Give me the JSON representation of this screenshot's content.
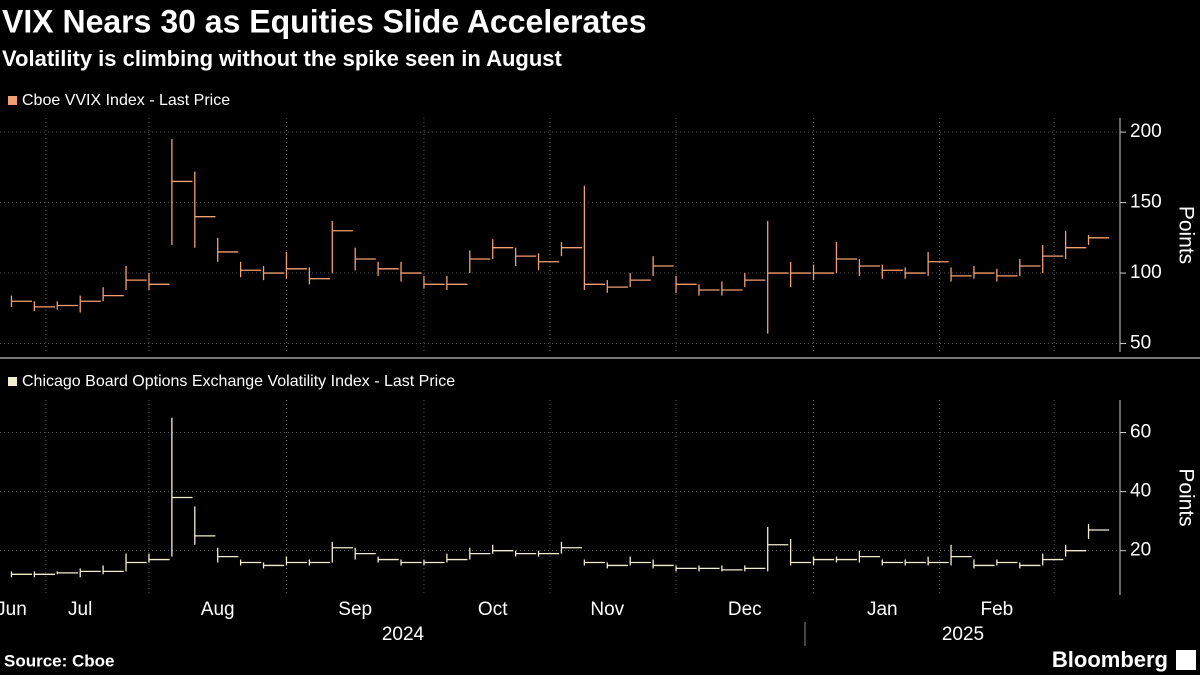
{
  "title": "VIX Nears 30 as Equities Slide Accelerates",
  "subtitle": "Volatility is climbing without the spike seen in August",
  "source": "Source: Cboe",
  "brand": "Bloomberg",
  "x_axis": {
    "categories": [
      "Jun",
      null,
      null,
      "Jul",
      null,
      null,
      null,
      null,
      null,
      "Aug",
      null,
      null,
      null,
      null,
      null,
      "Sep",
      null,
      null,
      null,
      null,
      null,
      "Oct",
      null,
      null,
      null,
      null,
      "Nov",
      null,
      null,
      null,
      null,
      null,
      "Dec",
      null,
      null,
      null,
      null,
      null,
      "Jan",
      null,
      null,
      null,
      null,
      "Feb",
      null,
      null,
      null,
      null
    ],
    "years": [
      "2024",
      "2025"
    ]
  },
  "chart_data": [
    {
      "type": "hlc",
      "legend": "Cboe VVIX Index - Last Price",
      "color": "#f2a071",
      "ylabel": "Points",
      "ylim": [
        44,
        210
      ],
      "yticks": [
        50,
        100,
        150,
        200
      ],
      "grid": true,
      "close": [
        80,
        76,
        77,
        80,
        84,
        95,
        92,
        165,
        140,
        115,
        102,
        100,
        103,
        96,
        130,
        110,
        103,
        100,
        92,
        92,
        110,
        118,
        112,
        108,
        118,
        92,
        90,
        95,
        105,
        92,
        88,
        88,
        95,
        100,
        100,
        100,
        110,
        105,
        102,
        100,
        108,
        98,
        100,
        98,
        105,
        112,
        118,
        125
      ],
      "high": [
        84,
        80,
        80,
        84,
        90,
        105,
        100,
        195,
        172,
        125,
        108,
        105,
        115,
        104,
        137,
        118,
        108,
        108,
        98,
        98,
        116,
        124,
        118,
        114,
        122,
        162,
        95,
        100,
        112,
        98,
        92,
        94,
        100,
        137,
        108,
        106,
        122,
        110,
        106,
        104,
        115,
        104,
        105,
        103,
        110,
        120,
        130,
        127
      ],
      "low": [
        76,
        73,
        74,
        72,
        80,
        88,
        88,
        120,
        118,
        108,
        97,
        95,
        96,
        92,
        100,
        102,
        98,
        94,
        89,
        88,
        100,
        110,
        105,
        102,
        112,
        88,
        86,
        90,
        98,
        86,
        84,
        84,
        90,
        57,
        90,
        95,
        100,
        98,
        96,
        96,
        98,
        94,
        96,
        94,
        98,
        100,
        110,
        120
      ]
    },
    {
      "type": "hlc",
      "legend": "Chicago Board Options Exchange Volatility Index - Last Price",
      "color": "#f3eed2",
      "ylabel": "Points",
      "ylim": [
        5,
        71
      ],
      "yticks": [
        20,
        40,
        60
      ],
      "grid": true,
      "close": [
        12,
        12,
        12.5,
        13,
        13,
        16,
        17,
        38,
        25,
        18,
        16,
        15,
        16,
        16,
        21,
        19,
        17,
        16,
        16,
        17,
        19,
        20,
        19,
        19,
        21,
        16,
        15,
        16,
        15,
        14,
        14,
        13.5,
        14,
        22,
        16,
        17,
        17,
        18,
        16,
        16,
        16,
        18,
        15,
        16,
        15,
        17,
        20,
        27
      ],
      "high": [
        13,
        13,
        13,
        14,
        15,
        19,
        19,
        65,
        35,
        21,
        17,
        16,
        18,
        17,
        23,
        21,
        18,
        17,
        17,
        19,
        21,
        22,
        20,
        20,
        23,
        17,
        16,
        18,
        17,
        15,
        15,
        15,
        15,
        28,
        24,
        18,
        18,
        20,
        17,
        17,
        18,
        22,
        17,
        17,
        16,
        19,
        22,
        29
      ],
      "low": [
        11,
        11,
        12,
        11,
        12,
        13,
        16,
        18,
        22,
        16,
        15,
        14,
        15,
        15,
        16,
        17,
        16,
        15,
        15,
        16,
        17,
        19,
        18,
        18,
        19,
        15,
        14,
        15,
        14,
        13,
        13,
        13,
        13,
        13,
        15,
        15,
        16,
        16,
        15,
        15,
        15,
        15,
        14,
        15,
        14,
        15,
        18,
        24
      ]
    }
  ]
}
